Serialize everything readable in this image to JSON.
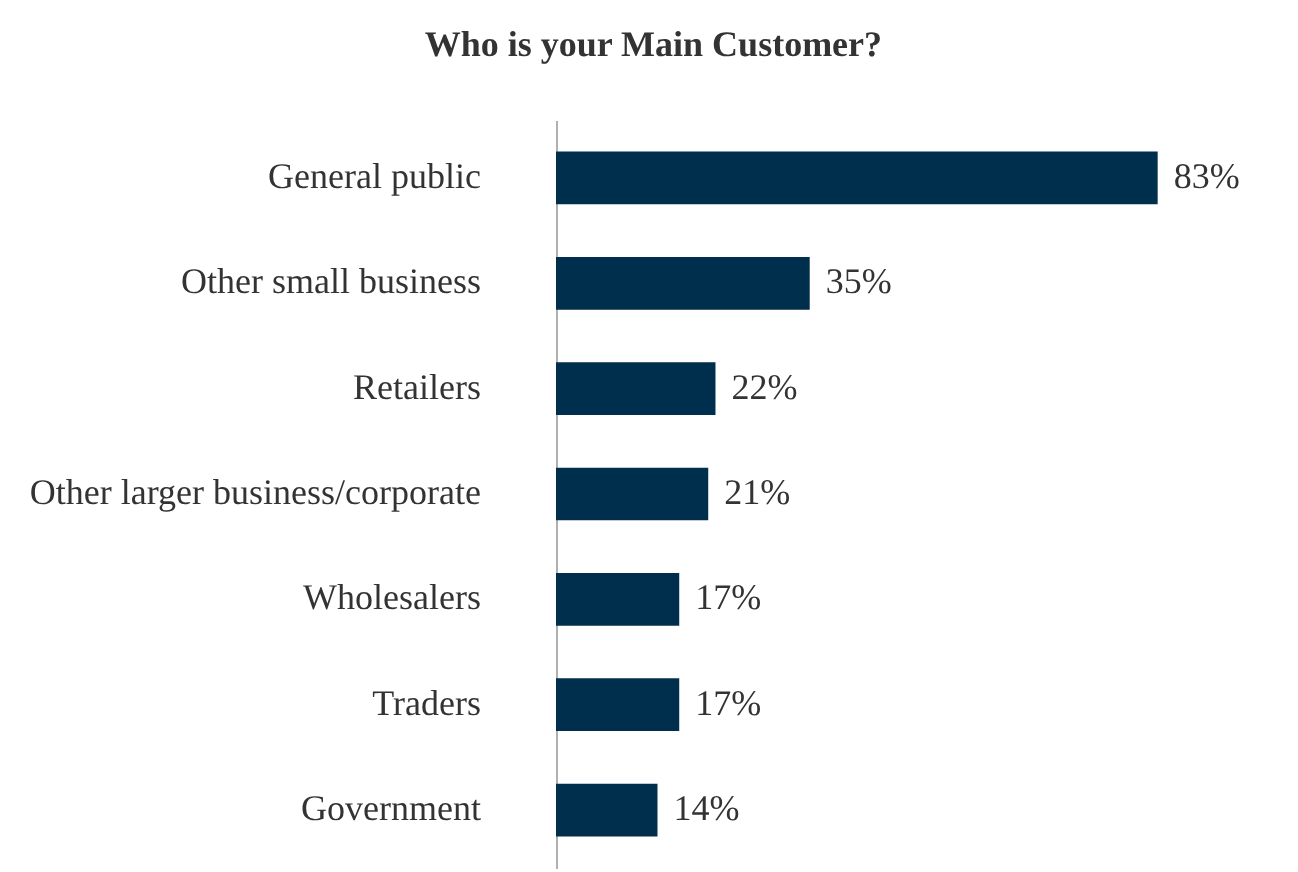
{
  "chart_data": {
    "type": "bar",
    "orientation": "horizontal",
    "title": "Who is your Main Customer?",
    "categories": [
      "General public",
      "Other small business",
      "Retailers",
      "Other larger business/corporate",
      "Wholesalers",
      "Traders",
      "Government"
    ],
    "values": [
      83,
      35,
      22,
      21,
      17,
      17,
      14
    ],
    "value_labels": [
      "83%",
      "35%",
      "22%",
      "21%",
      "17%",
      "17%",
      "14%"
    ],
    "color": "#002f4e",
    "grid": false
  }
}
